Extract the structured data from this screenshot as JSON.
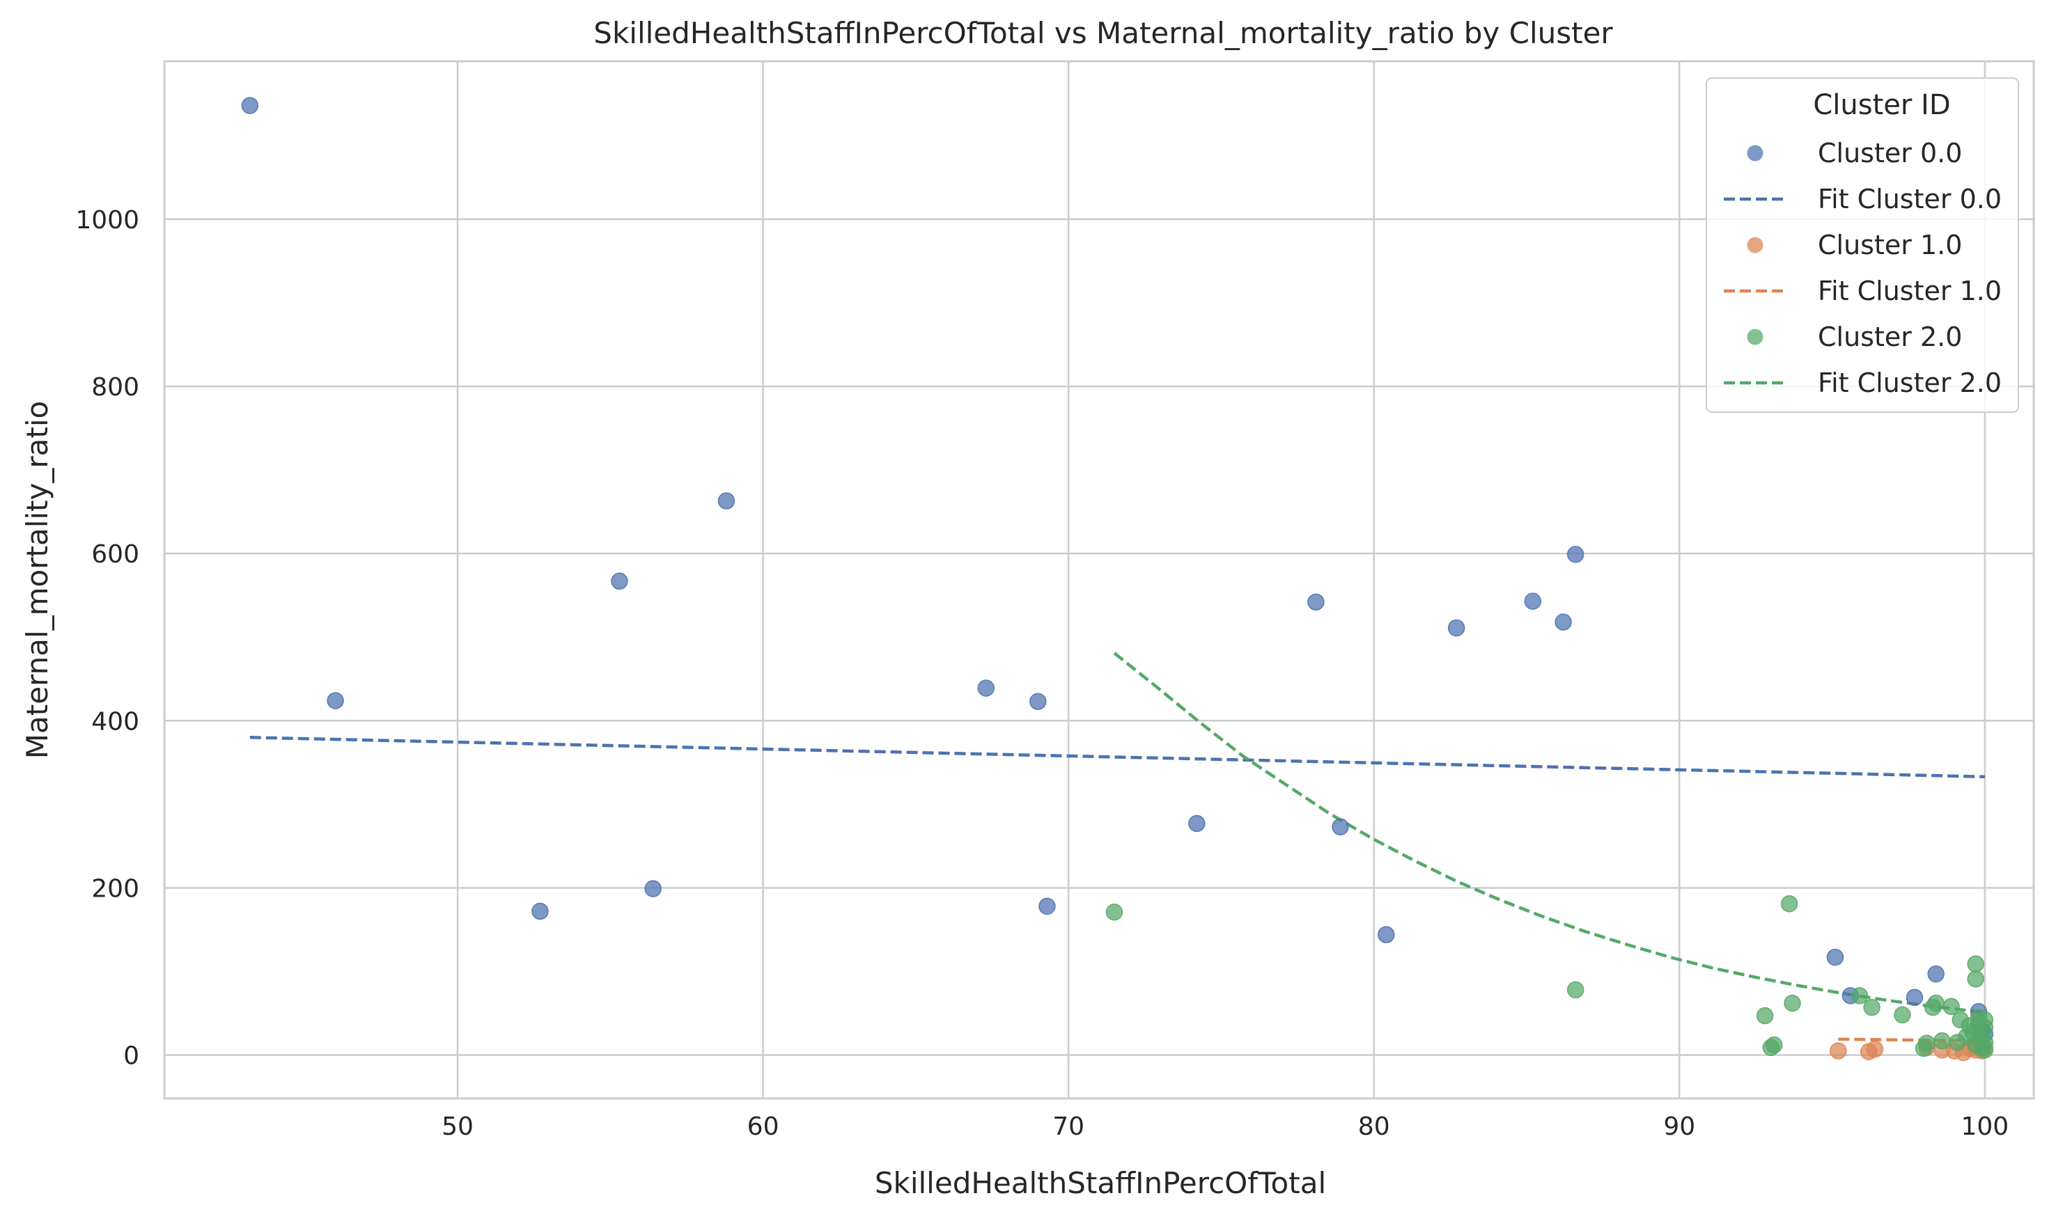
{
  "chart_data": {
    "type": "scatter",
    "title": "SkilledHealthStaffInPercOfTotal vs Maternal_mortality_ratio by Cluster",
    "xlabel": "SkilledHealthStaffInPercOfTotal",
    "ylabel": "Maternal_mortality_ratio",
    "xlim": [
      40.4,
      101.6
    ],
    "ylim": [
      -52,
      1189
    ],
    "xticks": [
      50,
      60,
      70,
      80,
      90,
      100
    ],
    "yticks": [
      0,
      200,
      400,
      600,
      800,
      1000
    ],
    "grid": true,
    "legend": {
      "title": "Cluster ID",
      "placement": "top-right",
      "entries": [
        {
          "label": "Cluster 0.0",
          "kind": "point",
          "color": "#4c72b0"
        },
        {
          "label": "Fit Cluster 0.0",
          "kind": "line",
          "color": "#4c72b0"
        },
        {
          "label": "Cluster 1.0",
          "kind": "point",
          "color": "#dd8452"
        },
        {
          "label": "Fit Cluster 1.0",
          "kind": "line",
          "color": "#dd8452"
        },
        {
          "label": "Cluster 2.0",
          "kind": "point",
          "color": "#55a868"
        },
        {
          "label": "Fit Cluster 2.0",
          "kind": "line",
          "color": "#55a868"
        }
      ]
    },
    "series": [
      {
        "name": "Cluster 0.0",
        "color": "#4c72b0",
        "points": [
          [
            43.2,
            1136
          ],
          [
            46.0,
            424
          ],
          [
            52.7,
            172
          ],
          [
            55.3,
            567
          ],
          [
            56.4,
            199
          ],
          [
            58.8,
            663
          ],
          [
            67.3,
            439
          ],
          [
            69.0,
            423
          ],
          [
            69.3,
            178
          ],
          [
            74.2,
            277
          ],
          [
            78.1,
            542
          ],
          [
            78.9,
            273
          ],
          [
            80.4,
            144
          ],
          [
            82.7,
            511
          ],
          [
            85.2,
            543
          ],
          [
            86.2,
            518
          ],
          [
            86.6,
            599
          ],
          [
            95.1,
            117
          ],
          [
            95.6,
            71
          ],
          [
            97.7,
            69
          ],
          [
            98.4,
            97
          ],
          [
            99.8,
            52
          ],
          [
            99.9,
            30
          ],
          [
            100.0,
            25
          ]
        ],
        "fit": [
          [
            43.2,
            380
          ],
          [
            100.0,
            333
          ]
        ]
      },
      {
        "name": "Cluster 1.0",
        "color": "#dd8452",
        "points": [
          [
            95.2,
            5
          ],
          [
            96.2,
            4
          ],
          [
            96.4,
            7
          ],
          [
            98.1,
            9
          ],
          [
            98.6,
            6
          ],
          [
            99.0,
            5
          ],
          [
            99.3,
            3
          ],
          [
            99.5,
            8
          ],
          [
            99.7,
            6
          ],
          [
            99.9,
            5
          ],
          [
            100.0,
            9
          ]
        ],
        "fit": [
          [
            95.2,
            19
          ],
          [
            100.0,
            17
          ]
        ]
      },
      {
        "name": "Cluster 2.0",
        "color": "#55a868",
        "points": [
          [
            71.5,
            171
          ],
          [
            86.6,
            78
          ],
          [
            92.8,
            47
          ],
          [
            93.0,
            9
          ],
          [
            93.1,
            12
          ],
          [
            93.6,
            181
          ],
          [
            93.7,
            62
          ],
          [
            95.9,
            71
          ],
          [
            96.3,
            57
          ],
          [
            97.3,
            48
          ],
          [
            98.0,
            8
          ],
          [
            98.1,
            14
          ],
          [
            98.3,
            57
          ],
          [
            98.4,
            62
          ],
          [
            98.6,
            17
          ],
          [
            98.9,
            58
          ],
          [
            99.1,
            15
          ],
          [
            99.2,
            42
          ],
          [
            99.4,
            22
          ],
          [
            99.5,
            35
          ],
          [
            99.6,
            28
          ],
          [
            99.7,
            109
          ],
          [
            99.7,
            91
          ],
          [
            99.7,
            12
          ],
          [
            99.8,
            45
          ],
          [
            99.8,
            38
          ],
          [
            99.9,
            22
          ],
          [
            99.9,
            8
          ],
          [
            100.0,
            33
          ],
          [
            100.0,
            15
          ],
          [
            100.0,
            42
          ],
          [
            100.0,
            6
          ]
        ],
        "fit": [
          [
            71.5,
            481
          ],
          [
            72.9,
            440
          ],
          [
            74.3,
            398
          ],
          [
            75.7,
            358
          ],
          [
            77.1,
            324
          ],
          [
            78.5,
            290
          ],
          [
            79.9,
            260
          ],
          [
            81.3,
            233
          ],
          [
            82.7,
            208
          ],
          [
            84.1,
            186
          ],
          [
            85.5,
            166
          ],
          [
            86.9,
            148
          ],
          [
            88.3,
            132
          ],
          [
            89.7,
            117
          ],
          [
            91.1,
            104
          ],
          [
            92.5,
            93
          ],
          [
            93.9,
            83
          ],
          [
            95.3,
            74
          ],
          [
            96.7,
            66
          ],
          [
            98.1,
            59
          ],
          [
            99.5,
            53
          ],
          [
            100.0,
            51
          ]
        ]
      }
    ]
  }
}
